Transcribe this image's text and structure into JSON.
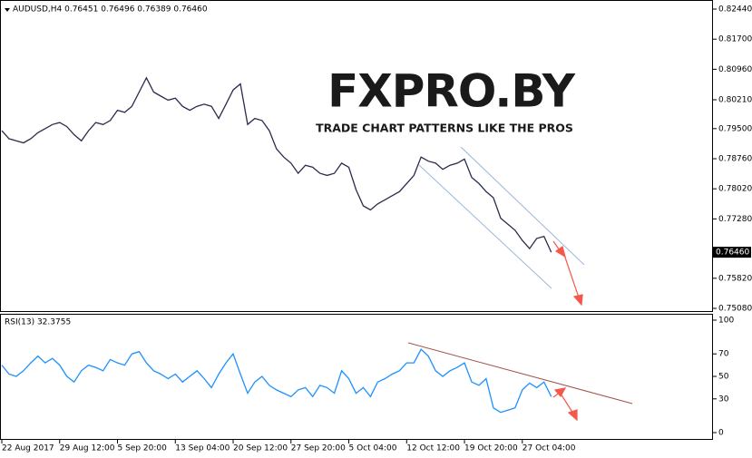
{
  "chart_data": [
    {
      "type": "line",
      "title": "AUDUSD,H4  0.76451 0.76496 0.76389 0.76460",
      "watermark": {
        "brand": "FXPRO.BY",
        "tagline": "TRADE CHART PATTERNS LIKE THE PROS"
      },
      "last_price": {
        "value": 0.7646,
        "label": "0.76460"
      },
      "xlim": [
        0,
        98
      ],
      "ylim": [
        0.7508,
        0.8244
      ],
      "yticks": [
        {
          "value": 0.8244,
          "label": "0.82440"
        },
        {
          "value": 0.817,
          "label": "0.81700"
        },
        {
          "value": 0.8096,
          "label": "0.80960"
        },
        {
          "value": 0.8021,
          "label": "0.80210"
        },
        {
          "value": 0.795,
          "label": "0.79500"
        },
        {
          "value": 0.7876,
          "label": "0.78760"
        },
        {
          "value": 0.7802,
          "label": "0.78020"
        },
        {
          "value": 0.7728,
          "label": "0.77280"
        },
        {
          "value": 0.7582,
          "label": "0.75820"
        },
        {
          "value": 0.7508,
          "label": "0.75080"
        }
      ],
      "x": [
        0,
        1,
        2,
        3,
        4,
        5,
        6,
        7,
        8,
        9,
        10,
        11,
        12,
        13,
        14,
        15,
        16,
        17,
        18,
        19,
        20,
        21,
        22,
        23,
        24,
        25,
        26,
        27,
        28,
        29,
        30,
        31,
        32,
        33,
        34,
        35,
        36,
        37,
        38,
        39,
        40,
        41,
        42,
        43,
        44,
        45,
        46,
        47,
        48,
        49,
        50,
        51,
        52,
        53,
        54,
        55,
        56,
        57,
        58,
        59,
        60,
        61,
        62,
        63,
        64,
        65,
        66,
        67,
        68,
        69,
        70,
        71,
        72,
        73,
        74,
        75,
        76
      ],
      "series": [
        {
          "color": "#2b2b4b",
          "values": [
            0.7945,
            0.7925,
            0.792,
            0.7915,
            0.7925,
            0.794,
            0.795,
            0.796,
            0.7965,
            0.7955,
            0.7935,
            0.792,
            0.7945,
            0.7965,
            0.796,
            0.797,
            0.7995,
            0.799,
            0.8005,
            0.804,
            0.8075,
            0.804,
            0.803,
            0.802,
            0.8025,
            0.8005,
            0.7995,
            0.8005,
            0.801,
            0.8005,
            0.7975,
            0.801,
            0.8045,
            0.806,
            0.796,
            0.7975,
            0.797,
            0.7945,
            0.79,
            0.788,
            0.7865,
            0.784,
            0.786,
            0.7855,
            0.784,
            0.7835,
            0.784,
            0.7865,
            0.7855,
            0.78,
            0.776,
            0.775,
            0.7765,
            0.7775,
            0.7785,
            0.7795,
            0.7815,
            0.7835,
            0.788,
            0.787,
            0.7865,
            0.785,
            0.786,
            0.7865,
            0.7875,
            0.783,
            0.7815,
            0.7795,
            0.778,
            0.773,
            0.7715,
            0.77,
            0.7675,
            0.7655,
            0.768,
            0.7685,
            0.7646
          ]
        }
      ]
    },
    {
      "type": "line",
      "title": "RSI(13) 32.3755",
      "xlim": [
        0,
        98
      ],
      "ylim": [
        0,
        100
      ],
      "yticks": [
        100,
        70,
        50,
        30,
        0
      ],
      "xticks": [
        {
          "value": 0,
          "label": "22 Aug 2017"
        },
        {
          "value": 8,
          "label": "29 Aug 12:00"
        },
        {
          "value": 16,
          "label": "5 Sep 20:00"
        },
        {
          "value": 24,
          "label": "13 Sep 04:00"
        },
        {
          "value": 32,
          "label": "20 Sep 12:00"
        },
        {
          "value": 40,
          "label": "27 Sep 20:00"
        },
        {
          "value": 48,
          "label": "5 Oct 04:00"
        },
        {
          "value": 56,
          "label": "12 Oct 12:00"
        },
        {
          "value": 64,
          "label": "19 Oct 20:00"
        },
        {
          "value": 72,
          "label": "27 Oct 04:00"
        }
      ],
      "x": [
        0,
        1,
        2,
        3,
        4,
        5,
        6,
        7,
        8,
        9,
        10,
        11,
        12,
        13,
        14,
        15,
        16,
        17,
        18,
        19,
        20,
        21,
        22,
        23,
        24,
        25,
        26,
        27,
        28,
        29,
        30,
        31,
        32,
        33,
        34,
        35,
        36,
        37,
        38,
        39,
        40,
        41,
        42,
        43,
        44,
        45,
        46,
        47,
        48,
        49,
        50,
        51,
        52,
        53,
        54,
        55,
        56,
        57,
        58,
        59,
        60,
        61,
        62,
        63,
        64,
        65,
        66,
        67,
        68,
        69,
        70,
        71,
        72,
        73,
        74,
        75,
        76
      ],
      "series": [
        {
          "color": "#1e90ff",
          "values": [
            60,
            52,
            50,
            55,
            62,
            68,
            62,
            66,
            60,
            50,
            45,
            55,
            60,
            58,
            55,
            65,
            62,
            60,
            70,
            72,
            62,
            55,
            52,
            48,
            52,
            45,
            50,
            55,
            48,
            40,
            52,
            62,
            70,
            52,
            35,
            45,
            50,
            42,
            38,
            35,
            32,
            38,
            40,
            32,
            42,
            40,
            35,
            55,
            48,
            35,
            40,
            32,
            45,
            48,
            52,
            55,
            62,
            62,
            74,
            68,
            55,
            50,
            55,
            58,
            62,
            45,
            42,
            48,
            22,
            18,
            20,
            22,
            38,
            44,
            40,
            45,
            32
          ]
        }
      ]
    }
  ]
}
